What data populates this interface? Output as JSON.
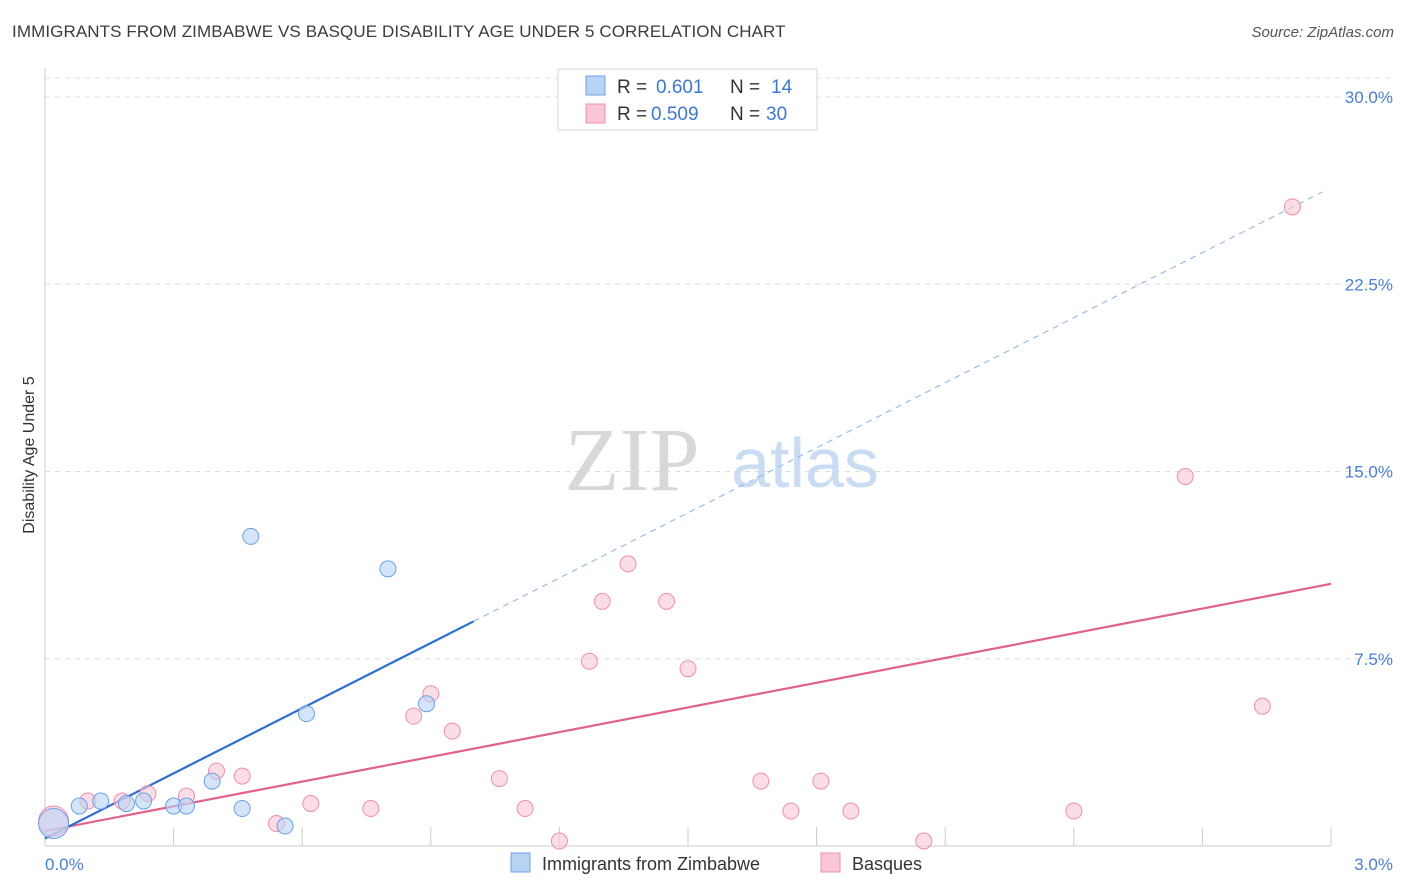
{
  "title": "IMMIGRANTS FROM ZIMBABWE VS BASQUE DISABILITY AGE UNDER 5 CORRELATION CHART",
  "source": "Source: ZipAtlas.com",
  "watermark": {
    "zip": "ZIP",
    "atlas": "atlas"
  },
  "chart_data": {
    "type": "scatter",
    "title": "IMMIGRANTS FROM ZIMBABWE VS BASQUE DISABILITY AGE UNDER 5 CORRELATION CHART",
    "xlabel": "",
    "ylabel": "Disability Age Under 5",
    "xlim": [
      0,
      3.0
    ],
    "ylim": [
      0,
      30.0
    ],
    "x_tick_labels": [
      "0.0%",
      "3.0%"
    ],
    "y_ticks": [
      7.5,
      15.0,
      22.5,
      30.0
    ],
    "y_tick_labels": [
      "7.5%",
      "15.0%",
      "22.5%",
      "30.0%"
    ],
    "grid": true,
    "legend": {
      "placement": "top-center",
      "r_label": "R =",
      "n_label": "N ="
    },
    "series": [
      {
        "name": "Immigrants from Zimbabwe",
        "color": "#6aa0e8",
        "fill": "#b9d3f5",
        "line_color": "#2f6fcf",
        "R": "0.601",
        "N": "14",
        "trend": {
          "x0": 0.0,
          "y0": 0.3,
          "x1": 1.0,
          "y1": 9.0,
          "dash_x1": 2.98,
          "dash_y1": 26.2
        },
        "points": [
          {
            "x": 0.02,
            "y": 0.9,
            "big": true
          },
          {
            "x": 0.08,
            "y": 1.6
          },
          {
            "x": 0.13,
            "y": 1.8
          },
          {
            "x": 0.19,
            "y": 1.7
          },
          {
            "x": 0.23,
            "y": 1.8
          },
          {
            "x": 0.3,
            "y": 1.6
          },
          {
            "x": 0.33,
            "y": 1.6
          },
          {
            "x": 0.39,
            "y": 2.6
          },
          {
            "x": 0.46,
            "y": 1.5
          },
          {
            "x": 0.48,
            "y": 12.4
          },
          {
            "x": 0.56,
            "y": 0.8
          },
          {
            "x": 0.61,
            "y": 5.3
          },
          {
            "x": 0.8,
            "y": 11.1
          },
          {
            "x": 0.89,
            "y": 5.7
          }
        ]
      },
      {
        "name": "Basques",
        "color": "#ef8fab",
        "fill": "#f8c6d4",
        "line_color": "#e0628a",
        "R": "0.509",
        "N": "30",
        "trend": {
          "x0": 0.0,
          "y0": 0.6,
          "x1": 3.0,
          "y1": 10.5
        },
        "points": [
          {
            "x": 0.02,
            "y": 1.0,
            "big": true
          },
          {
            "x": 0.1,
            "y": 1.8
          },
          {
            "x": 0.18,
            "y": 1.8
          },
          {
            "x": 0.24,
            "y": 2.1
          },
          {
            "x": 0.33,
            "y": 2.0
          },
          {
            "x": 0.4,
            "y": 3.0
          },
          {
            "x": 0.46,
            "y": 2.8
          },
          {
            "x": 0.54,
            "y": 0.9
          },
          {
            "x": 0.62,
            "y": 1.7
          },
          {
            "x": 0.76,
            "y": 1.5
          },
          {
            "x": 0.86,
            "y": 5.2
          },
          {
            "x": 0.9,
            "y": 6.1
          },
          {
            "x": 0.95,
            "y": 4.6
          },
          {
            "x": 1.06,
            "y": 2.7
          },
          {
            "x": 1.12,
            "y": 1.5
          },
          {
            "x": 1.2,
            "y": 0.2
          },
          {
            "x": 1.27,
            "y": 7.4
          },
          {
            "x": 1.3,
            "y": 9.8
          },
          {
            "x": 1.36,
            "y": 11.3
          },
          {
            "x": 1.45,
            "y": 9.8
          },
          {
            "x": 1.5,
            "y": 7.1
          },
          {
            "x": 1.67,
            "y": 2.6
          },
          {
            "x": 1.74,
            "y": 1.4
          },
          {
            "x": 1.81,
            "y": 2.6
          },
          {
            "x": 1.88,
            "y": 1.4
          },
          {
            "x": 2.05,
            "y": 0.2
          },
          {
            "x": 2.4,
            "y": 1.4
          },
          {
            "x": 2.66,
            "y": 14.8
          },
          {
            "x": 2.84,
            "y": 5.6
          },
          {
            "x": 2.91,
            "y": 25.6
          }
        ]
      }
    ]
  }
}
